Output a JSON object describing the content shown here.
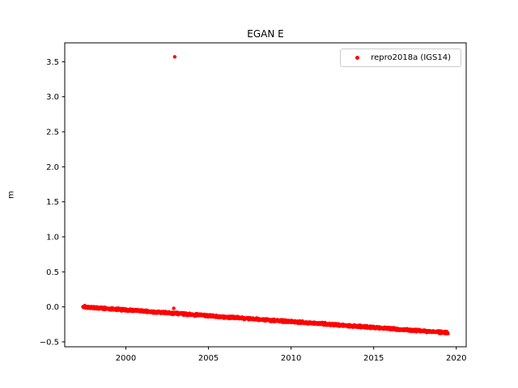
{
  "figure": {
    "title": "EGAN E"
  },
  "chart_data": {
    "type": "scatter",
    "title": "EGAN E",
    "xlabel": "",
    "ylabel": "m",
    "xlim": [
      1996.3,
      2020.6
    ],
    "ylim": [
      -0.57,
      3.77
    ],
    "xticks": [
      2000,
      2005,
      2010,
      2015,
      2020
    ],
    "yticks": [
      -0.5,
      0.0,
      0.5,
      1.0,
      1.5,
      2.0,
      2.5,
      3.0,
      3.5
    ],
    "grid": false,
    "legend": {
      "position": "upper right",
      "entries": [
        {
          "label": "repro2018a (IGS14)",
          "color": "#ff0000",
          "marker": "point"
        }
      ]
    },
    "series": [
      {
        "name": "repro2018a (IGS14)",
        "color": "#ff0000",
        "marker": "point",
        "marker_px": 2.2,
        "trend": {
          "x_start": 1997.4,
          "x_end": 2019.5,
          "y_start": 0.0,
          "y_end": -0.37,
          "points": 1600,
          "noise": 0.01
        },
        "outliers": [
          [
            2002.96,
            3.57
          ],
          [
            2002.9,
            -0.02
          ]
        ]
      }
    ]
  }
}
